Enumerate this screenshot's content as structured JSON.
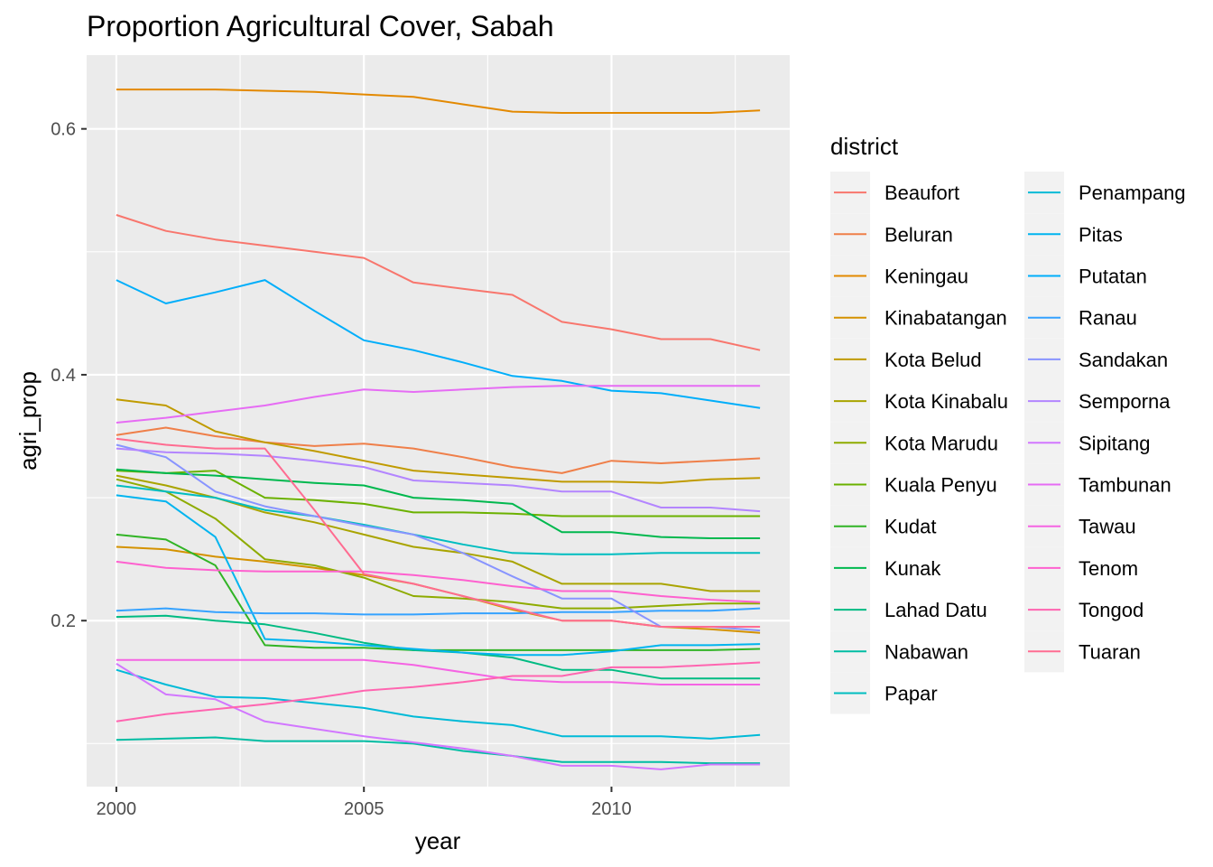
{
  "chart_data": {
    "type": "line",
    "title": "Proportion Agricultural Cover, Sabah",
    "xlabel": "year",
    "ylabel": "agri_prop",
    "xlim": [
      1999.4,
      2013.6
    ],
    "ylim": [
      0.065,
      0.66
    ],
    "x_ticks": [
      2000,
      2005,
      2010
    ],
    "x_tick_labels": [
      "2000",
      "2005",
      "2010"
    ],
    "x_minor": [
      2002.5,
      2007.5,
      2012.5
    ],
    "y_ticks": [
      0.2,
      0.4,
      0.6
    ],
    "y_tick_labels": [
      "0.2",
      "0.4",
      "0.6"
    ],
    "y_minor": [
      0.1,
      0.3,
      0.5
    ],
    "grid": true,
    "legend_title": "district",
    "legend_position": "right",
    "x": [
      2000,
      2001,
      2002,
      2003,
      2004,
      2005,
      2006,
      2007,
      2008,
      2009,
      2010,
      2011,
      2012,
      2013
    ],
    "series": [
      {
        "name": "Beaufort",
        "color": "#F8766D",
        "values": [
          0.53,
          0.517,
          0.51,
          0.505,
          0.5,
          0.495,
          0.475,
          0.47,
          0.465,
          0.443,
          0.437,
          0.429,
          0.429,
          0.42
        ]
      },
      {
        "name": "Beluran",
        "color": "#EF7F49",
        "values": [
          0.351,
          0.357,
          0.35,
          0.345,
          0.342,
          0.344,
          0.34,
          0.333,
          0.325,
          0.32,
          0.33,
          0.328,
          0.33,
          0.332
        ]
      },
      {
        "name": "Keningau",
        "color": "#E38900",
        "values": [
          0.632,
          0.632,
          0.632,
          0.631,
          0.63,
          0.628,
          0.626,
          0.62,
          0.614,
          0.613,
          0.613,
          0.613,
          0.613,
          0.615
        ]
      },
      {
        "name": "Kinabatangan",
        "color": "#D49200",
        "values": [
          0.26,
          0.258,
          0.252,
          0.248,
          0.243,
          0.237,
          0.23,
          0.22,
          0.209,
          0.2,
          0.2,
          0.195,
          0.193,
          0.19
        ]
      },
      {
        "name": "Kota Belud",
        "color": "#C09B00",
        "values": [
          0.38,
          0.375,
          0.354,
          0.345,
          0.338,
          0.33,
          0.322,
          0.319,
          0.316,
          0.313,
          0.313,
          0.312,
          0.315,
          0.316
        ]
      },
      {
        "name": "Kota Kinabalu",
        "color": "#A9A400",
        "values": [
          0.318,
          0.31,
          0.3,
          0.288,
          0.28,
          0.27,
          0.26,
          0.255,
          0.248,
          0.23,
          0.23,
          0.23,
          0.224,
          0.224
        ]
      },
      {
        "name": "Kota Marudu",
        "color": "#8EAB00",
        "values": [
          0.315,
          0.305,
          0.283,
          0.25,
          0.245,
          0.235,
          0.22,
          0.218,
          0.215,
          0.21,
          0.21,
          0.212,
          0.214,
          0.214
        ]
      },
      {
        "name": "Kuala Penyu",
        "color": "#6BB100",
        "values": [
          0.322,
          0.32,
          0.322,
          0.3,
          0.298,
          0.295,
          0.288,
          0.288,
          0.287,
          0.285,
          0.285,
          0.285,
          0.285,
          0.285
        ]
      },
      {
        "name": "Kudat",
        "color": "#31B425",
        "values": [
          0.27,
          0.266,
          0.245,
          0.18,
          0.178,
          0.178,
          0.176,
          0.176,
          0.176,
          0.176,
          0.176,
          0.176,
          0.176,
          0.177
        ]
      },
      {
        "name": "Kunak",
        "color": "#00B84E",
        "values": [
          0.323,
          0.32,
          0.318,
          0.315,
          0.312,
          0.31,
          0.3,
          0.298,
          0.295,
          0.272,
          0.272,
          0.268,
          0.267,
          0.267
        ]
      },
      {
        "name": "Lahad Datu",
        "color": "#00BB82",
        "values": [
          0.203,
          0.204,
          0.2,
          0.197,
          0.19,
          0.182,
          0.176,
          0.174,
          0.17,
          0.16,
          0.16,
          0.153,
          0.153,
          0.153
        ]
      },
      {
        "name": "Nabawan",
        "color": "#00BDA3",
        "values": [
          0.103,
          0.104,
          0.105,
          0.102,
          0.102,
          0.102,
          0.1,
          0.094,
          0.09,
          0.085,
          0.085,
          0.085,
          0.084,
          0.084
        ]
      },
      {
        "name": "Papar",
        "color": "#00BDC0",
        "values": [
          0.31,
          0.305,
          0.3,
          0.29,
          0.285,
          0.278,
          0.27,
          0.262,
          0.255,
          0.254,
          0.254,
          0.255,
          0.255,
          0.255
        ]
      },
      {
        "name": "Penampang",
        "color": "#00BAD7",
        "values": [
          0.16,
          0.148,
          0.138,
          0.137,
          0.133,
          0.129,
          0.122,
          0.118,
          0.115,
          0.106,
          0.106,
          0.106,
          0.104,
          0.107
        ]
      },
      {
        "name": "Pitas",
        "color": "#00B4EF",
        "values": [
          0.302,
          0.297,
          0.268,
          0.185,
          0.183,
          0.18,
          0.177,
          0.174,
          0.172,
          0.172,
          0.175,
          0.18,
          0.18,
          0.181
        ]
      },
      {
        "name": "Putatan",
        "color": "#00AEFA",
        "values": [
          0.477,
          0.458,
          0.467,
          0.477,
          0.452,
          0.428,
          0.42,
          0.41,
          0.399,
          0.395,
          0.387,
          0.385,
          0.379,
          0.373
        ]
      },
      {
        "name": "Ranau",
        "color": "#35A2FF",
        "values": [
          0.208,
          0.21,
          0.207,
          0.206,
          0.206,
          0.205,
          0.205,
          0.206,
          0.206,
          0.207,
          0.207,
          0.208,
          0.208,
          0.21
        ]
      },
      {
        "name": "Sandakan",
        "color": "#8894FF",
        "values": [
          0.343,
          0.333,
          0.305,
          0.293,
          0.285,
          0.277,
          0.27,
          0.255,
          0.236,
          0.218,
          0.218,
          0.195,
          0.195,
          0.192
        ]
      },
      {
        "name": "Semporna",
        "color": "#B385FF",
        "values": [
          0.34,
          0.337,
          0.336,
          0.334,
          0.33,
          0.325,
          0.314,
          0.312,
          0.31,
          0.305,
          0.305,
          0.292,
          0.292,
          0.289
        ]
      },
      {
        "name": "Sipitang",
        "color": "#D277FF",
        "values": [
          0.165,
          0.14,
          0.136,
          0.118,
          0.112,
          0.106,
          0.101,
          0.096,
          0.09,
          0.082,
          0.082,
          0.079,
          0.083,
          0.083
        ]
      },
      {
        "name": "Tambunan",
        "color": "#E66CF4",
        "values": [
          0.361,
          0.365,
          0.37,
          0.375,
          0.382,
          0.388,
          0.386,
          0.388,
          0.39,
          0.391,
          0.391,
          0.391,
          0.391,
          0.391
        ]
      },
      {
        "name": "Tawau",
        "color": "#F564E3",
        "values": [
          0.168,
          0.168,
          0.168,
          0.168,
          0.168,
          0.168,
          0.164,
          0.158,
          0.152,
          0.15,
          0.15,
          0.148,
          0.148,
          0.148
        ]
      },
      {
        "name": "Tenom",
        "color": "#FE61CF",
        "values": [
          0.248,
          0.243,
          0.241,
          0.24,
          0.24,
          0.24,
          0.237,
          0.233,
          0.228,
          0.224,
          0.224,
          0.22,
          0.217,
          0.215
        ]
      },
      {
        "name": "Tongod",
        "color": "#FF65B0",
        "values": [
          0.118,
          0.124,
          0.128,
          0.132,
          0.137,
          0.143,
          0.146,
          0.15,
          0.155,
          0.155,
          0.162,
          0.162,
          0.164,
          0.166
        ]
      },
      {
        "name": "Tuaran",
        "color": "#FF6C91",
        "values": [
          0.348,
          0.343,
          0.34,
          0.34,
          0.29,
          0.238,
          0.23,
          0.22,
          0.21,
          0.2,
          0.2,
          0.195,
          0.195,
          0.195
        ]
      }
    ]
  }
}
